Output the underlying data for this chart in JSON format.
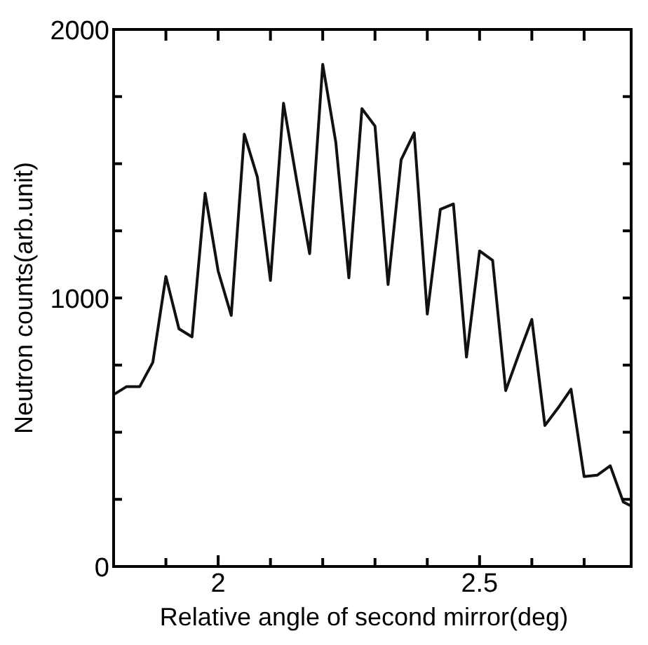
{
  "chart_data": {
    "type": "line",
    "xlabel": "Relative angle of second mirror(deg)",
    "ylabel": "Neutron counts(arb.unit)",
    "x": [
      1.8,
      1.825,
      1.85,
      1.875,
      1.9,
      1.925,
      1.95,
      1.975,
      2,
      2.025,
      2.05,
      2.075,
      2.1,
      2.125,
      2.15,
      2.175,
      2.2,
      2.225,
      2.25,
      2.275,
      2.3,
      2.325,
      2.35,
      2.375,
      2.4,
      2.425,
      2.45,
      2.475,
      2.5,
      2.525,
      2.55,
      2.575,
      2.6,
      2.625,
      2.65,
      2.675,
      2.7,
      2.725,
      2.75,
      2.775,
      2.79
    ],
    "series": [
      {
        "color": "#111111",
        "values": [
          640,
          670,
          670,
          760,
          1080,
          885,
          855,
          1390,
          1100,
          935,
          1610,
          1450,
          1065,
          1725,
          1440,
          1165,
          1870,
          1580,
          1075,
          1705,
          1640,
          1050,
          1515,
          1615,
          940,
          1330,
          1350,
          780,
          1175,
          1140,
          655,
          790,
          920,
          525,
          590,
          660,
          335,
          340,
          375,
          240,
          225
        ]
      }
    ],
    "xlim": [
      1.8,
      2.79
    ],
    "ylim": [
      0,
      2000
    ],
    "xticks": [
      {
        "value": 1.9,
        "label": null
      },
      2,
      {
        "value": 2.1,
        "label": null
      },
      {
        "value": 2.2,
        "label": null
      },
      {
        "value": 2.3,
        "label": null
      },
      {
        "value": 2.4,
        "label": null
      },
      2.5,
      {
        "value": 2.6,
        "label": null
      },
      {
        "value": 2.7,
        "label": null
      }
    ],
    "yticks": [
      0,
      {
        "value": 250,
        "label": null
      },
      {
        "value": 500,
        "label": null
      },
      {
        "value": 750,
        "label": null
      },
      1000,
      {
        "value": 1250,
        "label": null
      },
      {
        "value": 1500,
        "label": null
      },
      {
        "value": 1750,
        "label": null
      },
      2000
    ],
    "grid": false,
    "marker": "none",
    "line_style": "solid"
  }
}
